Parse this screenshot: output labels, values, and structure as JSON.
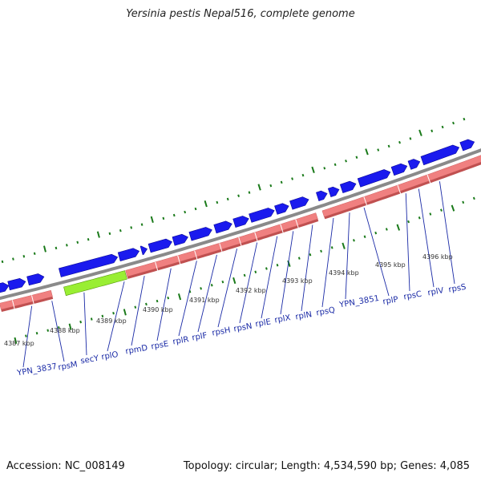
{
  "title": "Yersinia pestis Nepal516, complete genome",
  "accession": "Accession: NC_008149",
  "summary": "Topology: circular; Length: 4,534,590 bp; Genes: 4,085",
  "colors": {
    "backbone": "#8a8a8a",
    "forward_gene": "#1a1aee",
    "cds_track": "#f08080",
    "cds_track_dark": "#c05050",
    "highlight_gene": "#99ee33",
    "tick_marks": "#1a7a1a",
    "label_text": "#1a2aa6"
  },
  "scale_labels": [
    "4387 kbp",
    "4388 kbp",
    "4389 kbp",
    "4390 kbp",
    "4391 kbp",
    "4392 kbp",
    "4393 kbp",
    "4394 kbp",
    "4395 kbp",
    "4396 kbp"
  ],
  "genes": [
    "YPN_3837",
    "rpsM",
    "secY",
    "rplO",
    "rpmD",
    "rpsE",
    "rplR",
    "rplF",
    "rpsH",
    "rpsN",
    "rplE",
    "rplX",
    "rplN",
    "rpsQ",
    "YPN_3851",
    "rplP",
    "rpsC",
    "rplV",
    "rpsS"
  ]
}
